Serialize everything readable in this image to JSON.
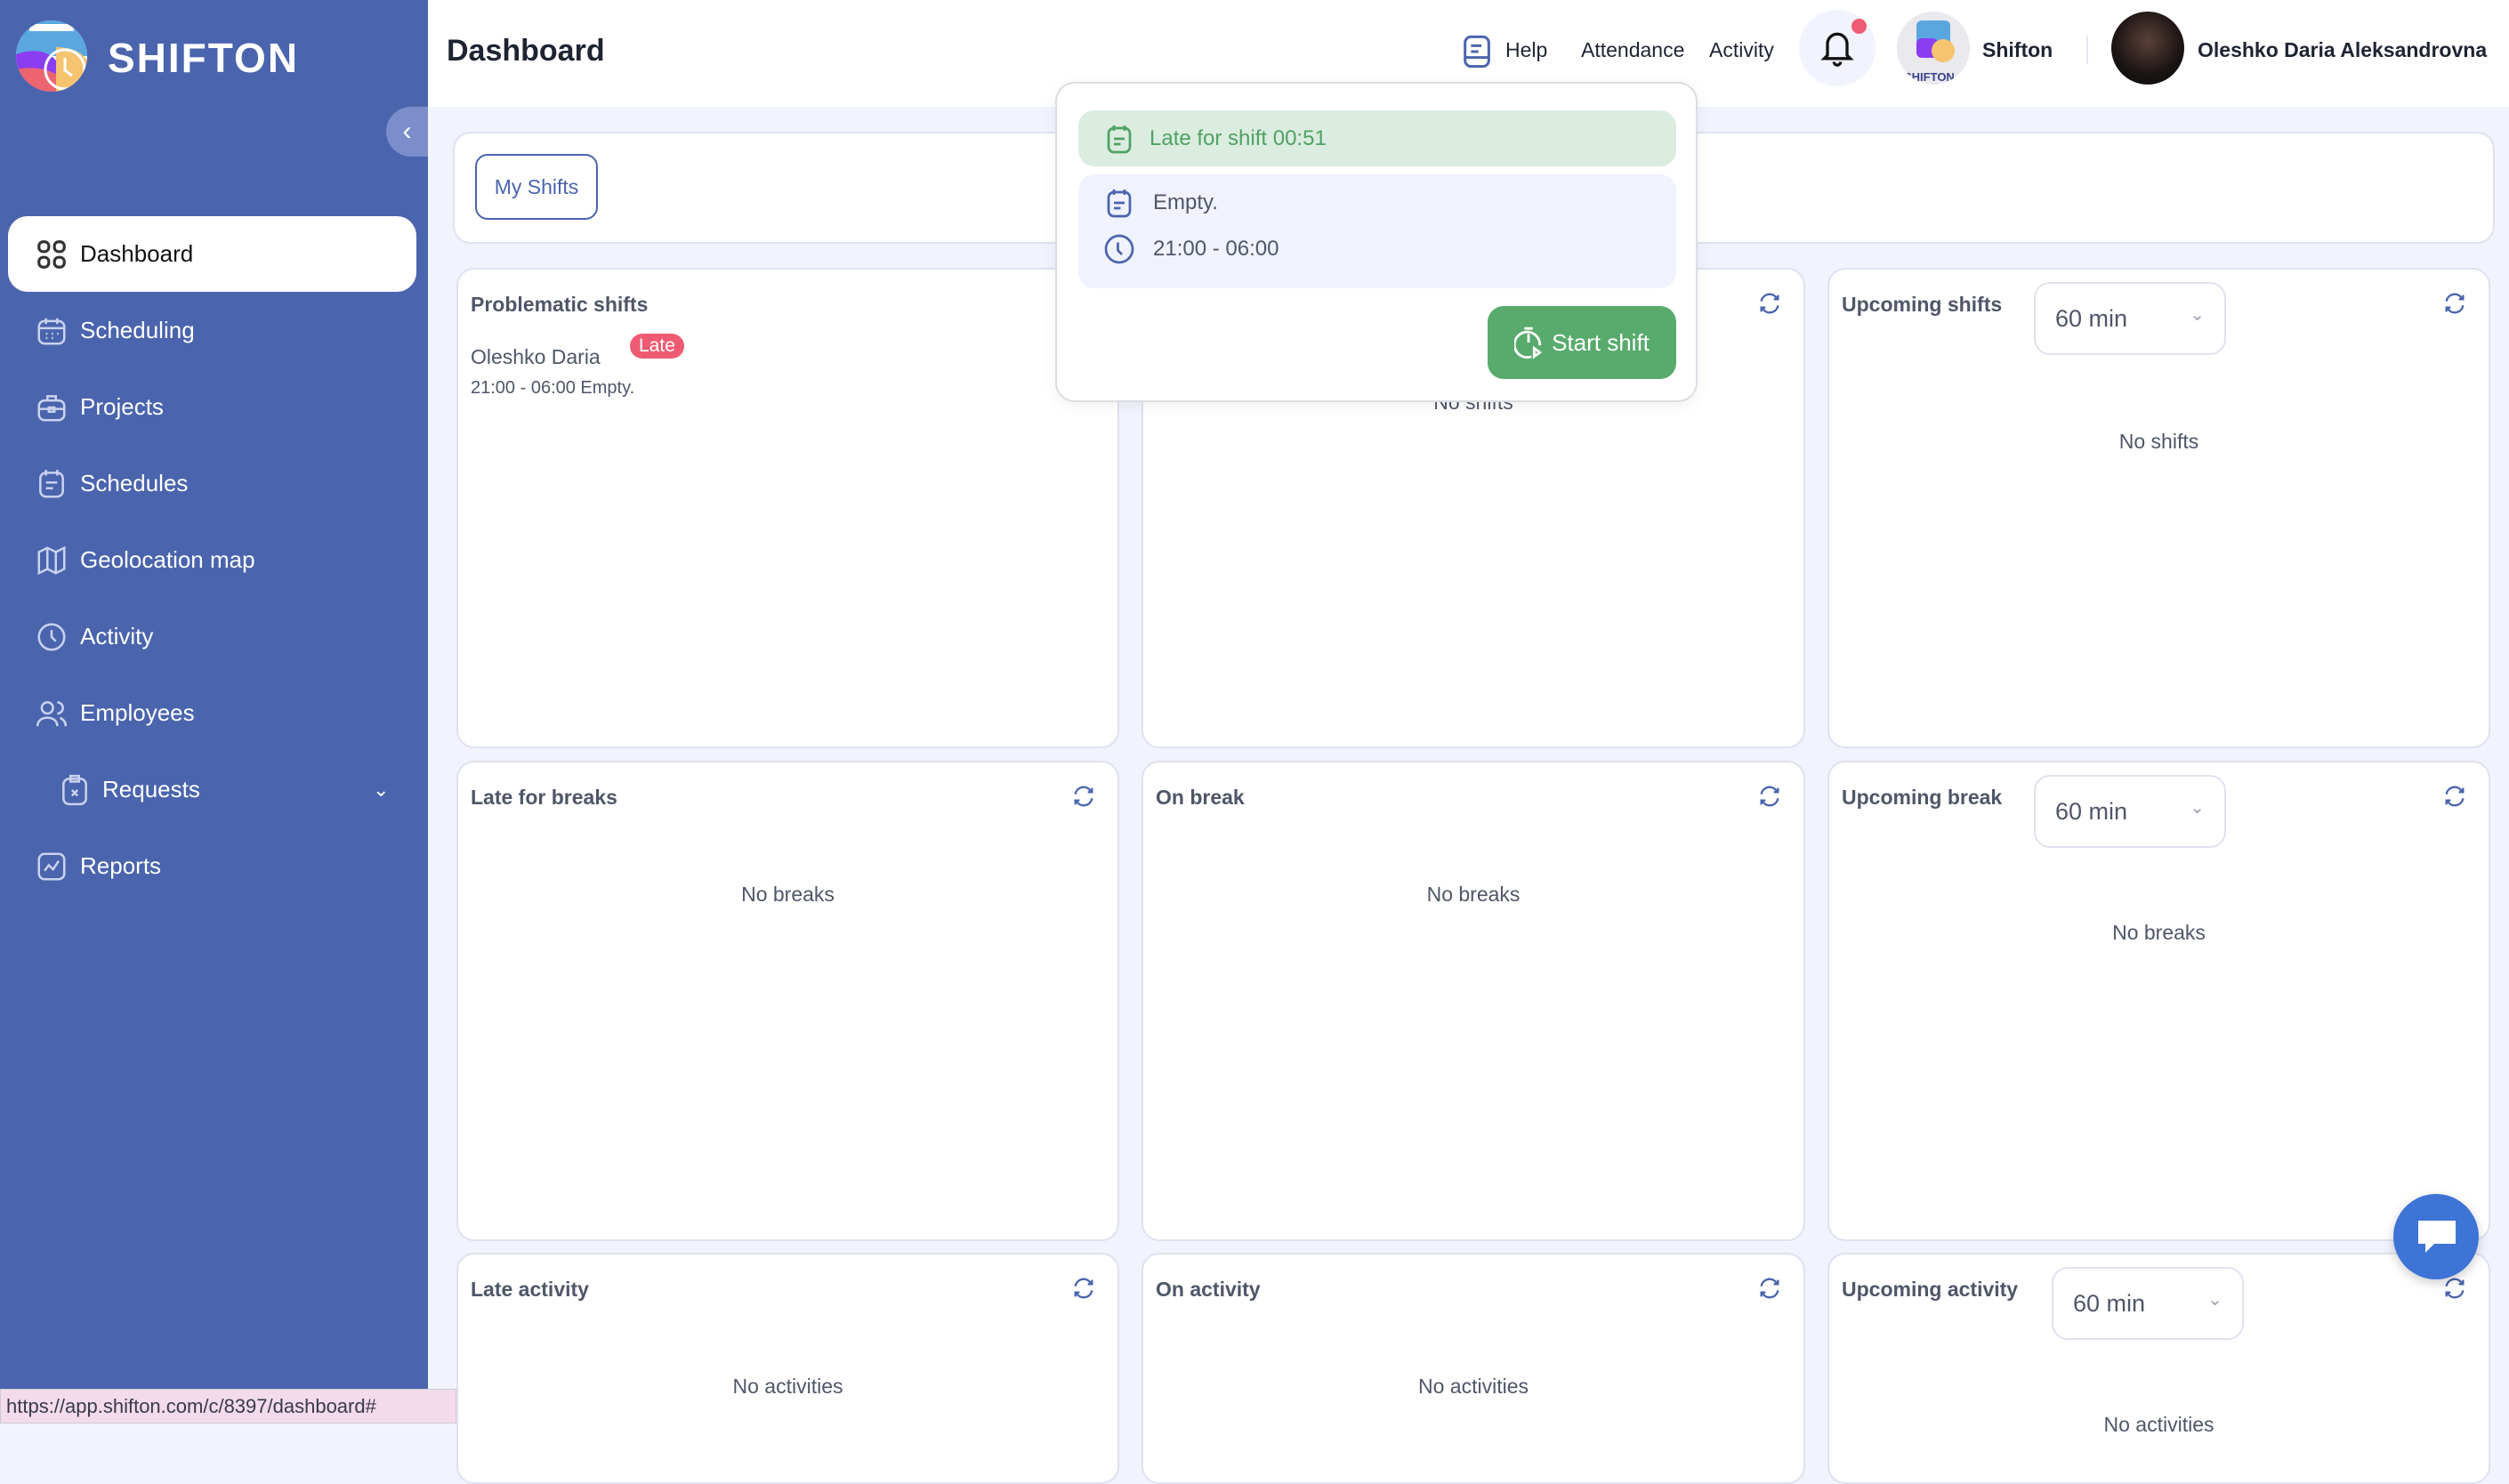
{
  "brand": {
    "name": "SHIFTON"
  },
  "sidebar": {
    "items": [
      {
        "label": "Dashboard",
        "icon": "grid-icon",
        "active": true
      },
      {
        "label": "Scheduling",
        "icon": "calendar-icon"
      },
      {
        "label": "Projects",
        "icon": "briefcase-icon"
      },
      {
        "label": "Schedules",
        "icon": "schedule-icon"
      },
      {
        "label": "Geolocation map",
        "icon": "map-icon"
      },
      {
        "label": "Activity",
        "icon": "clock-icon"
      },
      {
        "label": "Employees",
        "icon": "users-icon"
      },
      {
        "label": "Requests",
        "icon": "clipboard-icon",
        "expandable": true
      },
      {
        "label": "Reports",
        "icon": "chart-icon"
      }
    ]
  },
  "header": {
    "title": "Dashboard",
    "help": "Help",
    "attendance": "Attendance",
    "activity": "Activity",
    "company": "Shifton",
    "company_logo_text": "SHIFTON",
    "user": "Oleshko Daria Aleksandrovna",
    "has_notification": true
  },
  "tabs": {
    "my_shifts": "My Shifts"
  },
  "popup": {
    "late": "Late for shift 00:51",
    "note": "Empty.",
    "time": "21:00 - 06:00",
    "start": "Start shift"
  },
  "cards": {
    "problematic": {
      "title": "Problematic shifts",
      "employee": "Oleshko Daria",
      "badge": "Late",
      "detail": "21:00 - 06:00 Empty."
    },
    "middle_top": {
      "empty": "No shifts"
    },
    "upcoming_shifts": {
      "title": "Upcoming shifts",
      "select": "60 min",
      "empty": "No shifts"
    },
    "late_breaks": {
      "title": "Late for breaks",
      "empty": "No breaks"
    },
    "on_break": {
      "title": "On break",
      "empty": "No breaks"
    },
    "upcoming_break": {
      "title": "Upcoming break",
      "select": "60 min",
      "empty": "No breaks"
    },
    "late_activity": {
      "title": "Late activity",
      "empty": "No activities"
    },
    "on_activity": {
      "title": "On activity",
      "empty": "No activities"
    },
    "upcoming_activity": {
      "title": "Upcoming activity",
      "select": "60 min",
      "empty": "No activities"
    }
  },
  "status_bar": {
    "url": "https://app.shifton.com/c/8397/dashboard#"
  },
  "colors": {
    "sidebar": "#4a64ad",
    "success": "#58ab6c",
    "danger": "#ef5b73",
    "accent": "#3e74d6"
  }
}
